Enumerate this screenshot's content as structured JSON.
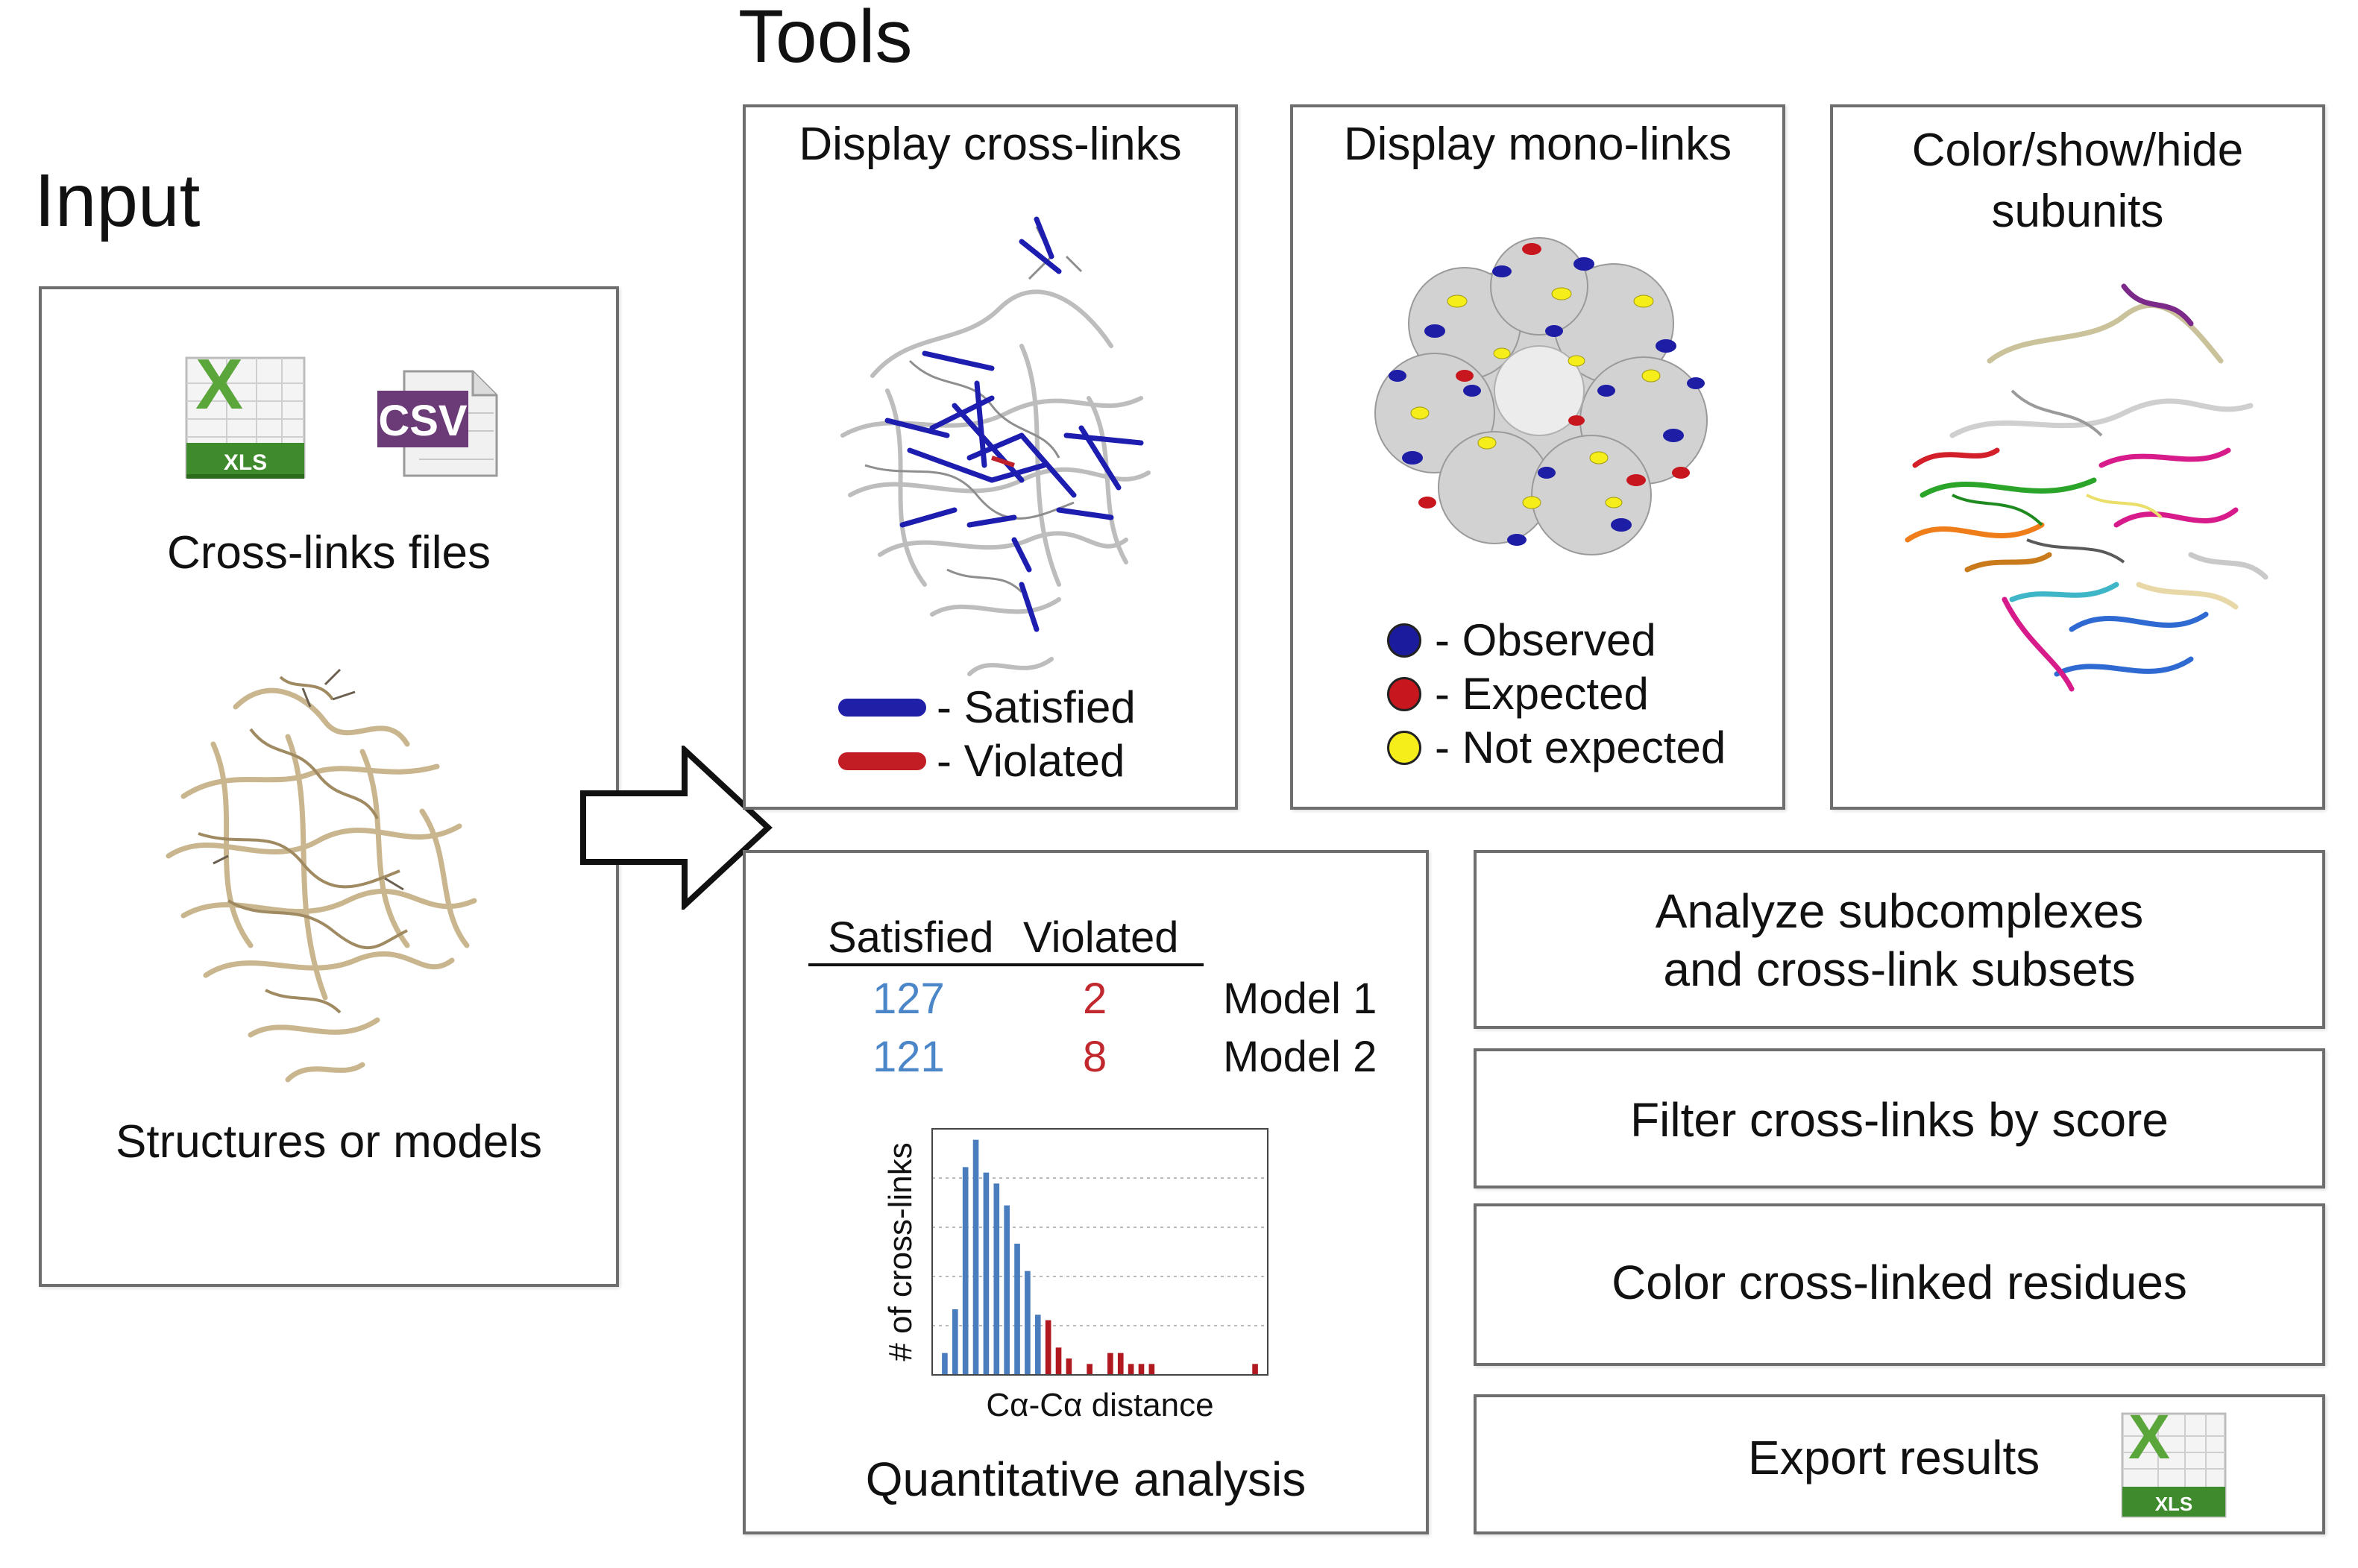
{
  "headings": {
    "input": "Input",
    "tools": "Tools"
  },
  "input_panel": {
    "files_label": "Cross-links files",
    "structures_label": "Structures or models",
    "xls_icon_text": "XLS",
    "xls_icon_letter": "X",
    "csv_icon_text": "CSV"
  },
  "crosslinks_panel": {
    "title": "Display cross-links",
    "legend": [
      {
        "label": "- Satisfied",
        "color": "#1f1fa8"
      },
      {
        "label": "- Violated",
        "color": "#c21d24"
      }
    ]
  },
  "monolinks_panel": {
    "title": "Display mono-links",
    "legend": [
      {
        "label": "- Observed",
        "color": "#1b1b9e"
      },
      {
        "label": "- Expected",
        "color": "#c8161e"
      },
      {
        "label": "- Not expected",
        "color": "#f6ee1a"
      }
    ]
  },
  "subunits_panel": {
    "title_line1": "Color/show/hide",
    "title_line2": "subunits"
  },
  "quant_panel": {
    "title": "Quantitative analysis",
    "table": {
      "headers": [
        "Satisfied",
        "Violated"
      ],
      "rows": [
        {
          "satisfied": "127",
          "violated": "2",
          "model": "Model 1"
        },
        {
          "satisfied": "121",
          "violated": "8",
          "model": "Model 2"
        }
      ]
    },
    "colors": {
      "satisfied": "#4a86c8",
      "violated": "#c0282e"
    }
  },
  "tool_boxes": {
    "subcomplexes_line1": "Analyze subcomplexes",
    "subcomplexes_line2": "and cross-link subsets",
    "filter": "Filter cross-links by score",
    "color_residues": "Color cross-linked residues",
    "export": "Export results",
    "export_icon_text": "XLS",
    "export_icon_letter": "X"
  },
  "chart_data": {
    "type": "bar",
    "xlabel": "Cα-Cα distance",
    "ylabel": "# of cross-links",
    "grid": true,
    "series": [
      {
        "color": "#4a7dbd",
        "values": [
          4,
          12,
          38,
          43,
          37,
          35,
          31,
          24,
          19,
          11
        ]
      },
      {
        "color": "#b0191f",
        "values": [
          10,
          5,
          3,
          0,
          2,
          0,
          4,
          4,
          2,
          2,
          2,
          0,
          0,
          0,
          0,
          0,
          0,
          0,
          0,
          0,
          2
        ]
      }
    ],
    "ylim": [
      0,
      45
    ]
  }
}
